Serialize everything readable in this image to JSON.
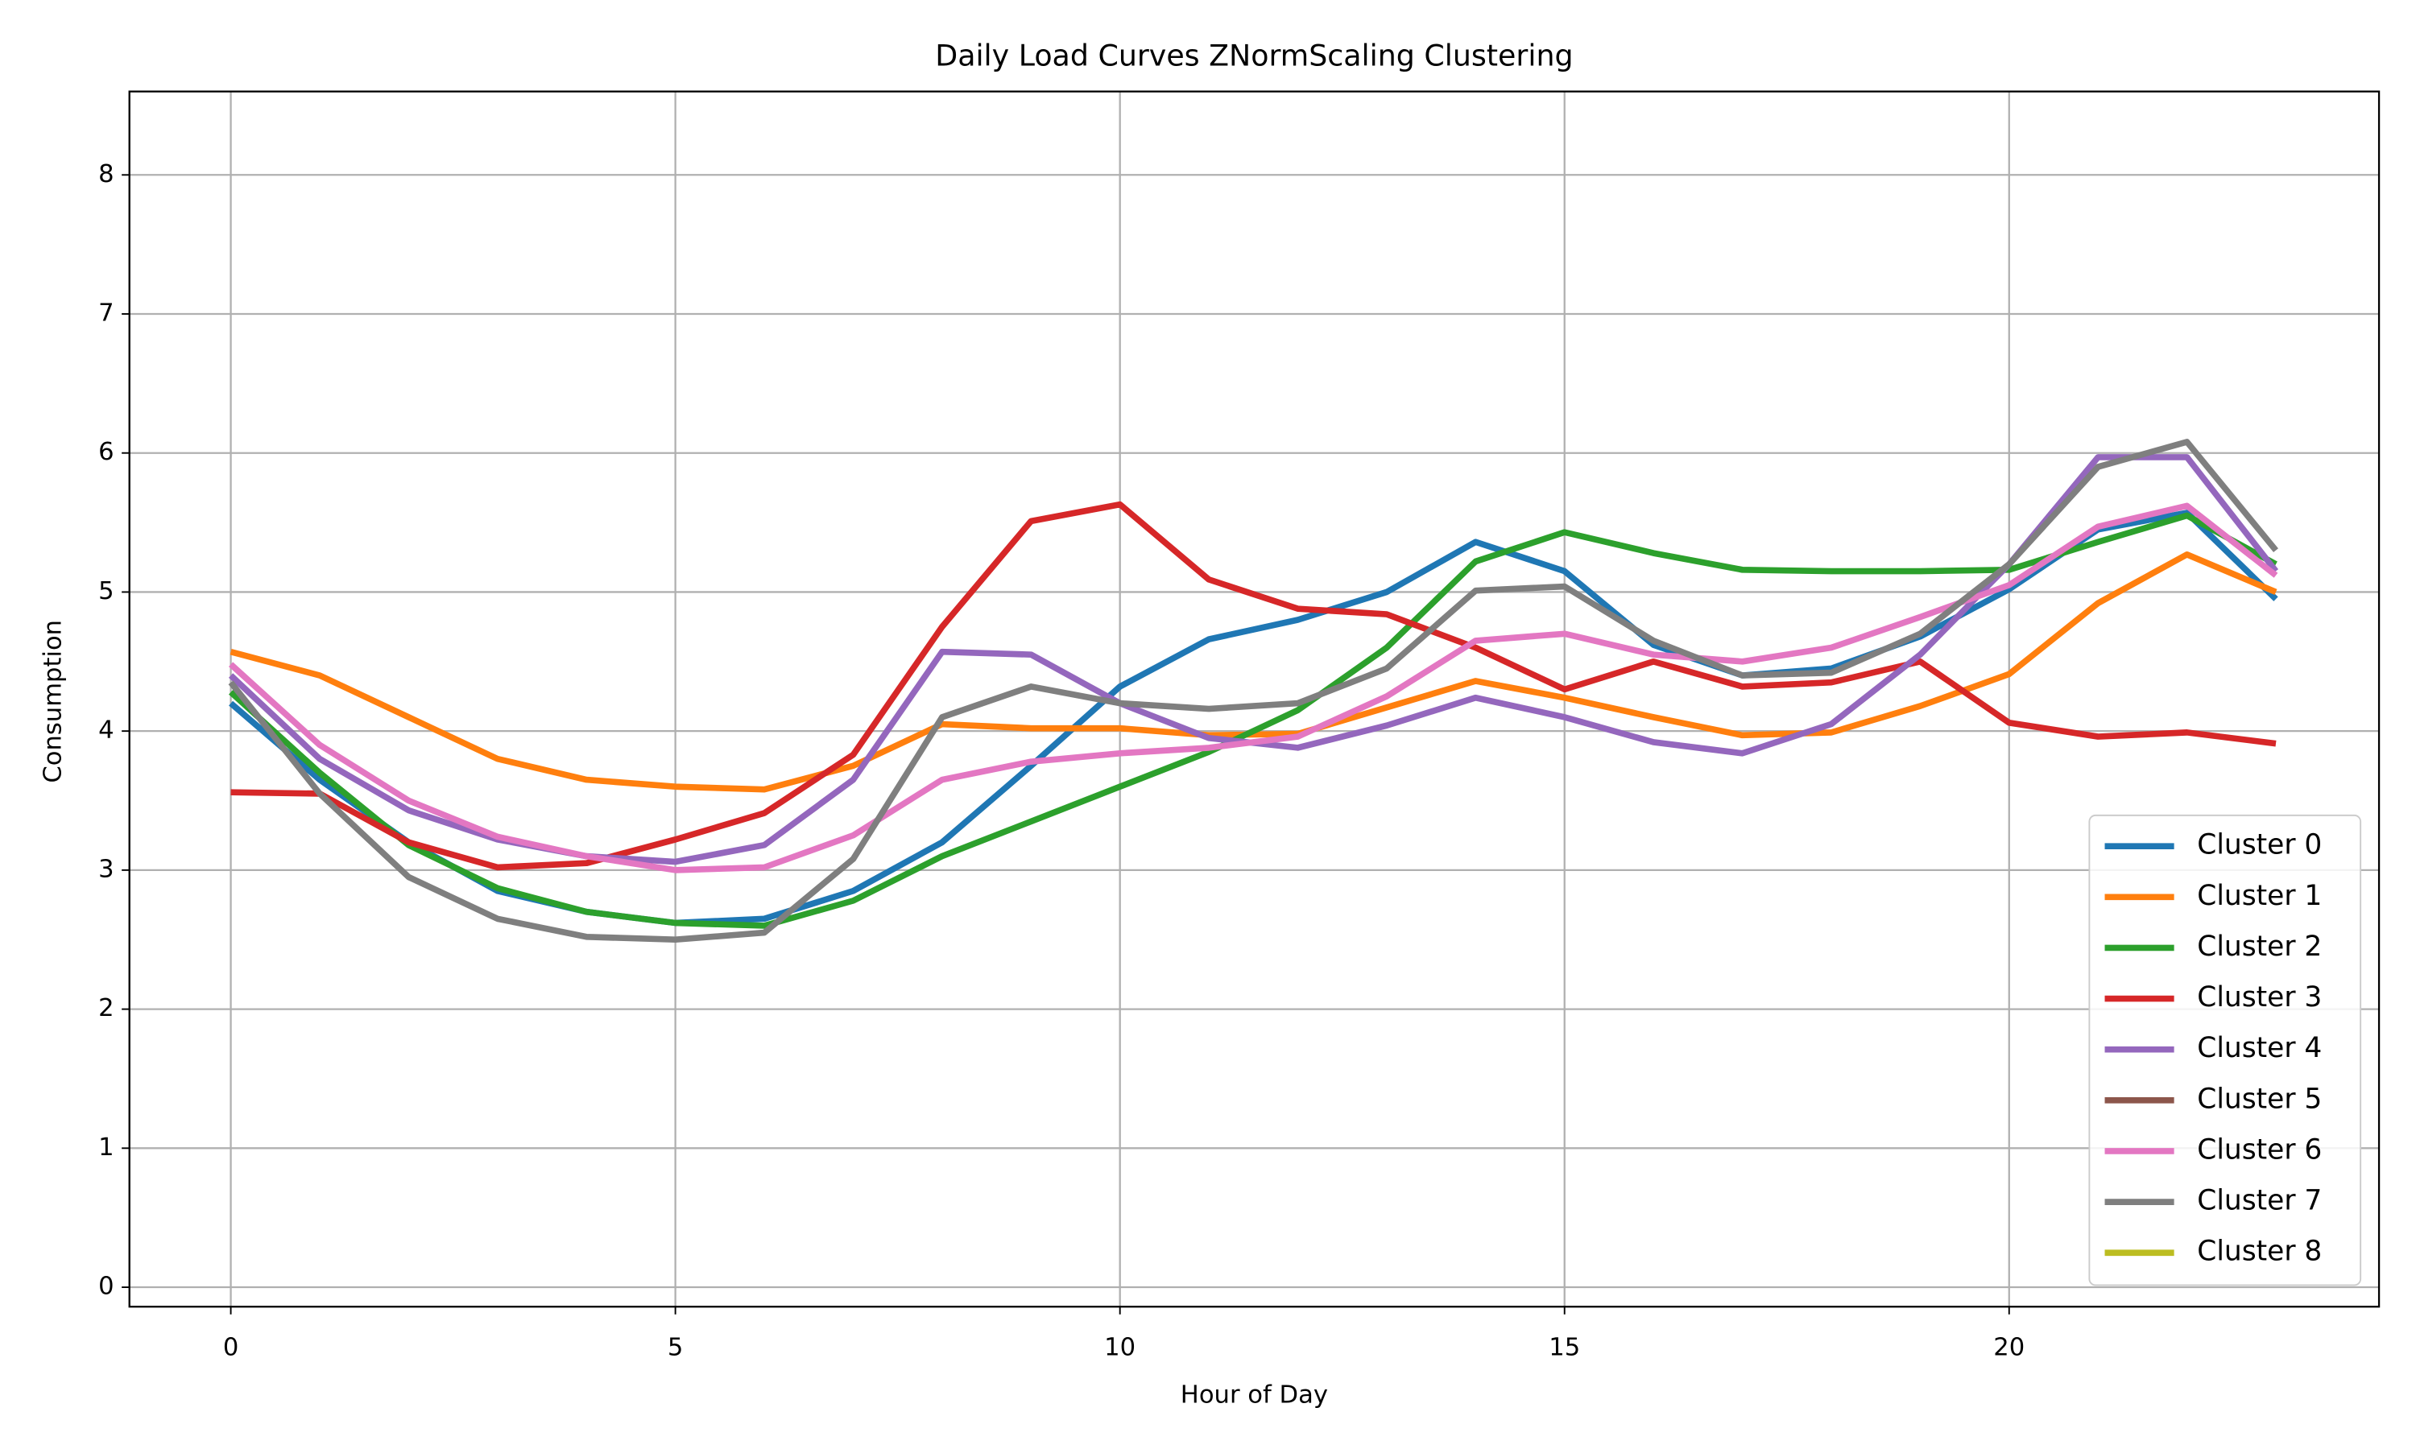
{
  "chart_data": {
    "type": "line",
    "title": "Daily Load Curves ZNormScaling Clustering",
    "x_label": "Hour of Day",
    "y_label": "Consumption",
    "x": [
      0,
      1,
      2,
      3,
      4,
      5,
      6,
      7,
      8,
      9,
      10,
      11,
      12,
      13,
      14,
      15,
      16,
      17,
      18,
      19,
      20,
      21,
      22,
      23
    ],
    "series": [
      {
        "name": "Cluster 0",
        "color": "#1f77b4",
        "values": [
          4.2,
          3.65,
          3.2,
          2.85,
          2.7,
          2.62,
          2.65,
          2.85,
          3.2,
          3.75,
          4.32,
          4.66,
          4.8,
          5.0,
          5.36,
          5.15,
          4.62,
          4.4,
          4.45,
          4.68,
          5.02,
          5.45,
          5.57,
          4.95
        ]
      },
      {
        "name": "Cluster 1",
        "color": "#ff7f0e",
        "values": [
          4.57,
          4.4,
          4.1,
          3.8,
          3.65,
          3.6,
          3.58,
          3.75,
          4.05,
          4.02,
          4.02,
          3.97,
          3.98,
          4.17,
          4.36,
          4.24,
          4.1,
          3.97,
          3.99,
          4.18,
          4.41,
          4.92,
          5.27,
          5.0
        ]
      },
      {
        "name": "Cluster 2",
        "color": "#2ca02c",
        "values": [
          4.28,
          3.7,
          3.18,
          2.87,
          2.7,
          2.62,
          2.6,
          2.78,
          3.1,
          3.35,
          3.6,
          3.85,
          4.15,
          4.6,
          5.22,
          5.43,
          5.28,
          5.16,
          5.15,
          5.15,
          5.16,
          5.36,
          5.55,
          5.2
        ]
      },
      {
        "name": "Cluster 3",
        "color": "#d62728",
        "values": [
          3.56,
          3.55,
          3.2,
          3.02,
          3.05,
          3.22,
          3.41,
          3.83,
          4.75,
          5.51,
          5.63,
          5.09,
          4.88,
          4.84,
          4.6,
          4.3,
          4.5,
          4.32,
          4.35,
          4.5,
          4.06,
          3.96,
          3.99,
          3.91
        ]
      },
      {
        "name": "Cluster 4",
        "color": "#9467bd",
        "values": [
          4.4,
          3.8,
          3.43,
          3.22,
          3.1,
          3.06,
          3.18,
          3.65,
          4.57,
          4.55,
          4.2,
          3.95,
          3.88,
          4.04,
          4.24,
          4.1,
          3.92,
          3.84,
          4.05,
          4.55,
          5.2,
          5.97,
          5.97,
          5.15
        ]
      },
      {
        "name": "Cluster 5",
        "color": "#8c564b",
        "values": [
          null,
          null,
          null,
          null,
          null,
          null,
          null,
          null,
          null,
          null,
          null,
          null,
          null,
          null,
          null,
          null,
          null,
          null,
          null,
          null,
          null,
          null,
          null,
          null
        ]
      },
      {
        "name": "Cluster 6",
        "color": "#e377c2",
        "values": [
          4.48,
          3.9,
          3.5,
          3.24,
          3.1,
          3.0,
          3.02,
          3.25,
          3.65,
          3.78,
          3.84,
          3.88,
          3.96,
          4.25,
          4.65,
          4.7,
          4.55,
          4.5,
          4.6,
          4.82,
          5.05,
          5.47,
          5.62,
          5.12
        ]
      },
      {
        "name": "Cluster 7",
        "color": "#7f7f7f",
        "values": [
          4.35,
          3.55,
          2.95,
          2.65,
          2.52,
          2.5,
          2.55,
          3.08,
          4.1,
          4.32,
          4.2,
          4.16,
          4.2,
          4.45,
          5.01,
          5.04,
          4.65,
          4.4,
          4.42,
          4.7,
          5.2,
          5.9,
          6.08,
          5.3
        ]
      },
      {
        "name": "Cluster 8",
        "color": "#bcbd22",
        "values": [
          null,
          null,
          null,
          null,
          null,
          null,
          null,
          null,
          null,
          null,
          null,
          null,
          null,
          null,
          null,
          null,
          null,
          null,
          null,
          null,
          null,
          null,
          null,
          null
        ]
      }
    ],
    "xlim": [
      -1.14,
      24.16
    ],
    "ylim": [
      -0.14,
      8.6
    ],
    "xticks": [
      0,
      5,
      10,
      15,
      20
    ],
    "yticks": [
      0,
      1,
      2,
      3,
      4,
      5,
      6,
      7,
      8
    ],
    "grid": true,
    "legend": "lower right"
  }
}
